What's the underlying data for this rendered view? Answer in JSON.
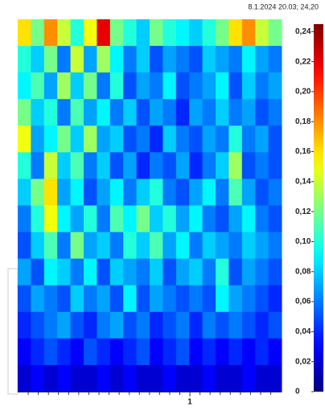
{
  "chart_data": {
    "type": "heatmap",
    "timestamp": "8.1.2024 20.03; 24,20",
    "colormap": "jet",
    "clim": [
      0,
      0.245
    ],
    "cticks": [
      0,
      {
        "value": 0.02,
        "label": "0,02"
      },
      {
        "value": 0.04,
        "label": "0,04"
      },
      {
        "value": 0.06,
        "label": "0,06"
      },
      {
        "value": 0.08,
        "label": "0,08"
      },
      {
        "value": 0.1,
        "label": "0,10"
      },
      {
        "value": 0.12,
        "label": "0,12"
      },
      {
        "value": 0.14,
        "label": "0,14"
      },
      {
        "value": 0.16,
        "label": "0,16"
      },
      {
        "value": 0.18,
        "label": "0,18"
      },
      {
        "value": 0.2,
        "label": "0,20"
      },
      {
        "value": 0.22,
        "label": "0,22"
      },
      {
        "value": 0.24,
        "label": "0,24"
      }
    ],
    "xlim": [
      -0.065,
      1.567
    ],
    "xticks": [
      1
    ],
    "xminor_ticks": [
      0,
      0.0625,
      0.125,
      0.1875,
      0.25,
      0.3125,
      0.375,
      0.4375,
      0.5,
      0.5625,
      0.625,
      0.6875,
      0.75,
      0.8125,
      0.875,
      0.9375,
      1.0625,
      1.125,
      1.1875,
      1.25,
      1.3125,
      1.375,
      1.4375,
      1.5
    ],
    "z": [
      [
        0.16,
        0.12,
        0.18,
        0.14,
        0.1,
        0.15,
        0.22,
        0.12,
        0.1,
        0.08,
        0.12,
        0.1,
        0.09,
        0.08,
        0.1,
        0.12,
        0.16,
        0.18,
        0.14,
        0.12
      ],
      [
        0.1,
        0.08,
        0.12,
        0.06,
        0.14,
        0.07,
        0.13,
        0.09,
        0.06,
        0.08,
        0.05,
        0.07,
        0.06,
        0.05,
        0.08,
        0.07,
        0.06,
        0.09,
        0.07,
        0.06
      ],
      [
        0.09,
        0.11,
        0.07,
        0.13,
        0.08,
        0.12,
        0.06,
        0.1,
        0.05,
        0.07,
        0.06,
        0.09,
        0.05,
        0.06,
        0.07,
        0.09,
        0.05,
        0.08,
        0.06,
        0.07
      ],
      [
        0.12,
        0.08,
        0.1,
        0.06,
        0.11,
        0.07,
        0.09,
        0.06,
        0.08,
        0.05,
        0.07,
        0.06,
        0.04,
        0.07,
        0.06,
        0.08,
        0.06,
        0.07,
        0.05,
        0.06
      ],
      [
        0.15,
        0.07,
        0.09,
        0.12,
        0.08,
        0.13,
        0.07,
        0.08,
        0.05,
        0.06,
        0.04,
        0.08,
        0.06,
        0.05,
        0.07,
        0.06,
        0.1,
        0.06,
        0.07,
        0.05
      ],
      [
        0.1,
        0.06,
        0.14,
        0.08,
        0.11,
        0.06,
        0.08,
        0.05,
        0.07,
        0.04,
        0.06,
        0.05,
        0.07,
        0.04,
        0.06,
        0.08,
        0.13,
        0.05,
        0.06,
        0.05
      ],
      [
        0.08,
        0.12,
        0.16,
        0.07,
        0.09,
        0.05,
        0.07,
        0.09,
        0.06,
        0.08,
        0.1,
        0.06,
        0.05,
        0.07,
        0.09,
        0.06,
        0.11,
        0.07,
        0.05,
        0.06
      ],
      [
        0.06,
        0.1,
        0.15,
        0.09,
        0.07,
        0.1,
        0.06,
        0.11,
        0.09,
        0.12,
        0.08,
        0.1,
        0.07,
        0.09,
        0.06,
        0.05,
        0.07,
        0.09,
        0.06,
        0.05
      ],
      [
        0.05,
        0.08,
        0.11,
        0.06,
        0.12,
        0.07,
        0.08,
        0.06,
        0.1,
        0.08,
        0.11,
        0.07,
        0.09,
        0.06,
        0.08,
        0.07,
        0.06,
        0.08,
        0.07,
        0.06
      ],
      [
        0.07,
        0.05,
        0.09,
        0.08,
        0.06,
        0.09,
        0.05,
        0.08,
        0.07,
        0.06,
        0.08,
        0.05,
        0.07,
        0.08,
        0.06,
        0.1,
        0.05,
        0.07,
        0.06,
        0.05
      ],
      [
        0.05,
        0.07,
        0.06,
        0.05,
        0.08,
        0.06,
        0.07,
        0.05,
        0.09,
        0.05,
        0.07,
        0.06,
        0.05,
        0.06,
        0.05,
        0.09,
        0.07,
        0.06,
        0.05,
        0.04
      ],
      [
        0.04,
        0.05,
        0.06,
        0.07,
        0.05,
        0.04,
        0.06,
        0.07,
        0.05,
        0.06,
        0.04,
        0.05,
        0.06,
        0.04,
        0.06,
        0.05,
        0.06,
        0.05,
        0.04,
        0.05
      ],
      [
        0.03,
        0.04,
        0.05,
        0.04,
        0.03,
        0.05,
        0.04,
        0.03,
        0.04,
        0.05,
        0.03,
        0.04,
        0.05,
        0.03,
        0.04,
        0.03,
        0.04,
        0.03,
        0.04,
        0.03
      ],
      [
        0.02,
        0.03,
        0.02,
        0.03,
        0.02,
        0.02,
        0.03,
        0.02,
        0.03,
        0.02,
        0.02,
        0.03,
        0.02,
        0.02,
        0.03,
        0.02,
        0.02,
        0.03,
        0.02,
        0.02
      ]
    ]
  }
}
